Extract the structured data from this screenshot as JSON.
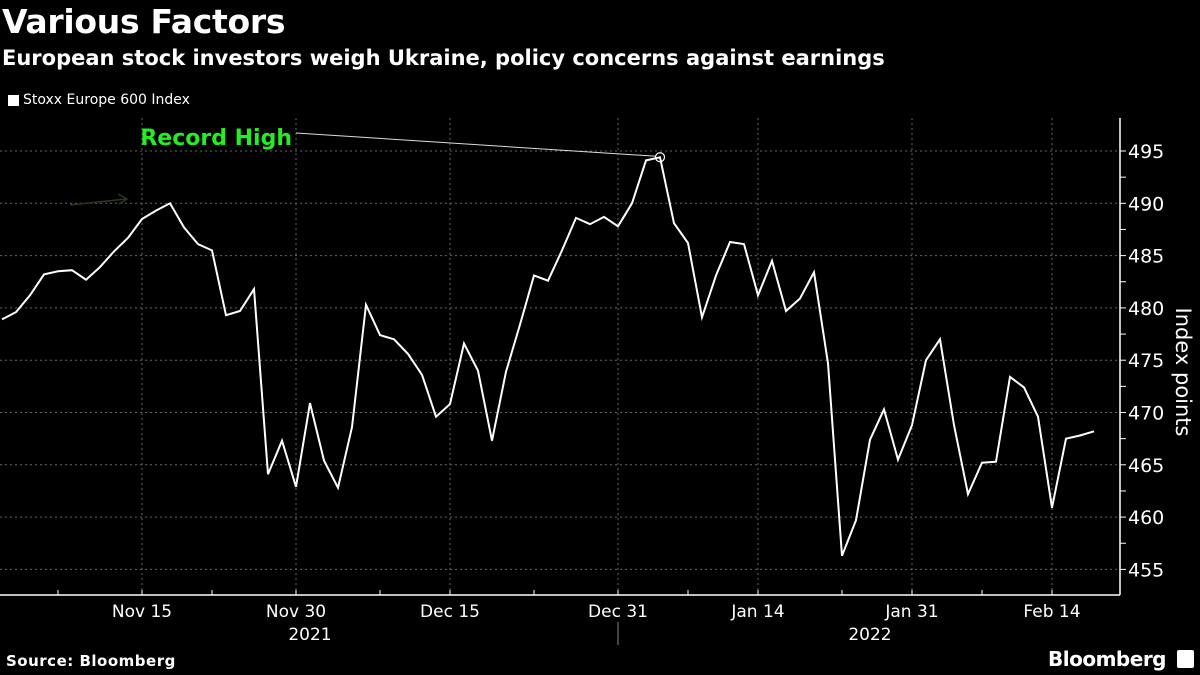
{
  "header": {
    "title": "Various Factors",
    "subtitle": "European stock investors weigh Ukraine, policy concerns against earnings"
  },
  "footer": {
    "source": "Source: Bloomberg",
    "brand": "Bloomberg",
    "brand_icon": "bloomberg-chart-icon"
  },
  "colors": {
    "background": "#000000",
    "line": "#ffffff",
    "annotation": "#22ee22",
    "grid": "#555555"
  },
  "chart_data": {
    "type": "line",
    "title": "Various Factors",
    "subtitle": "European stock investors weigh Ukraine, policy concerns against earnings",
    "legend": {
      "entries": [
        "Stoxx Europe 600 Index"
      ],
      "placement": "top-left"
    },
    "ylabel": "Index points",
    "xlabel": "",
    "ylim": [
      452.5,
      497.5
    ],
    "yticks": [
      455,
      460,
      465,
      470,
      475,
      480,
      485,
      490,
      495
    ],
    "grid": true,
    "x_unit": "trading day index (0 = Nov 1, 2021)",
    "xticks": [
      {
        "index": 10,
        "label": "Nov 15"
      },
      {
        "index": 21,
        "label": "Nov 30"
      },
      {
        "index": 32,
        "label": "Dec 15"
      },
      {
        "index": 44,
        "label": "Dec 31"
      },
      {
        "index": 54,
        "label": "Jan 14"
      },
      {
        "index": 65,
        "label": "Jan 31"
      },
      {
        "index": 75,
        "label": "Feb 14"
      }
    ],
    "minor_xticks": [
      4,
      15,
      27,
      38,
      49,
      60,
      70
    ],
    "years": [
      {
        "label": "2021",
        "center_index": 22
      },
      {
        "label": "2022",
        "center_index": 62
      }
    ],
    "year_break_index": 44,
    "series": [
      {
        "name": "Stoxx Europe 600 Index",
        "values": [
          478.9,
          479.6,
          481.2,
          483.2,
          483.5,
          483.6,
          482.7,
          483.9,
          485.4,
          486.7,
          488.5,
          489.3,
          490.0,
          487.7,
          486.1,
          485.5,
          479.3,
          479.7,
          481.8,
          464.1,
          467.3,
          462.9,
          470.9,
          465.4,
          462.8,
          468.6,
          480.3,
          477.4,
          477.0,
          475.6,
          473.6,
          469.6,
          470.8,
          476.6,
          474.0,
          467.3,
          473.9,
          478.4,
          483.1,
          482.6,
          485.5,
          488.6,
          488.0,
          488.7,
          487.8,
          490.0,
          494.1,
          494.4,
          488.1,
          486.2,
          479.1,
          483.1,
          486.3,
          486.1,
          481.2,
          484.5,
          479.7,
          480.9,
          483.4,
          474.7,
          456.3,
          459.7,
          467.4,
          470.3,
          465.5,
          468.8,
          475.0,
          477.0,
          468.8,
          462.2,
          465.2,
          465.3,
          473.4,
          472.4,
          469.6,
          460.9,
          467.5,
          467.8,
          468.2
        ]
      }
    ],
    "annotations": [
      {
        "text": "Record High",
        "index": 47,
        "value": 494.4
      }
    ]
  }
}
